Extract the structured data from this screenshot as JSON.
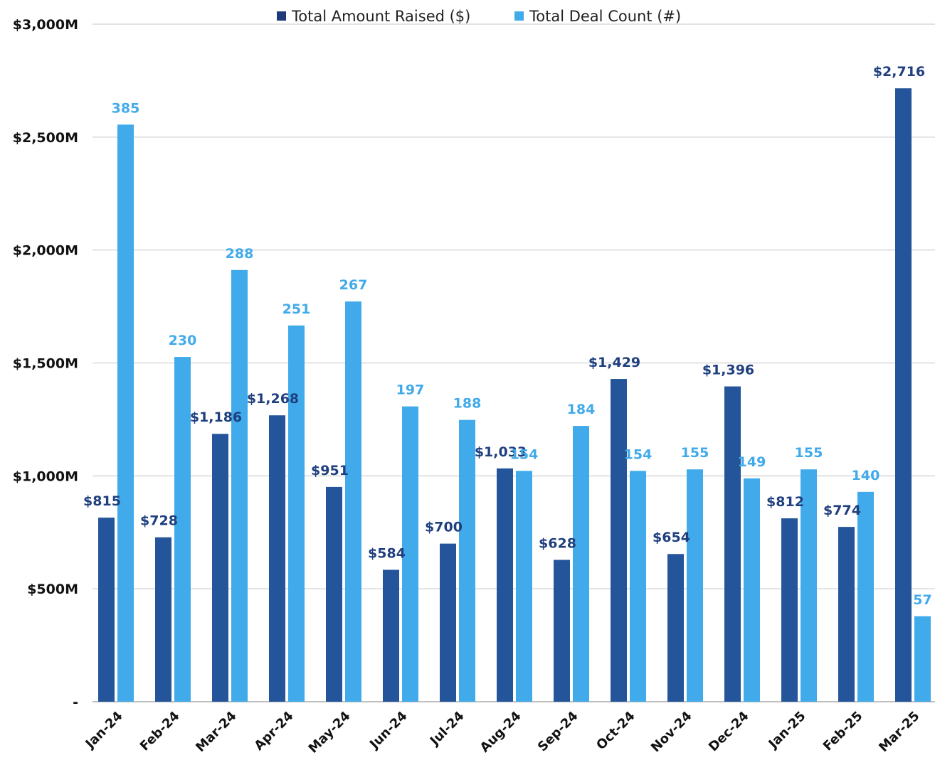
{
  "chart_data": {
    "type": "bar",
    "categories": [
      "Jan-24",
      "Feb-24",
      "Mar-24",
      "Apr-24",
      "May-24",
      "Jun-24",
      "Jul-24",
      "Aug-24",
      "Sep-24",
      "Oct-24",
      "Nov-24",
      "Dec-24",
      "Jan-25",
      "Feb-25",
      "Mar-25"
    ],
    "series": [
      {
        "name": "Total Amount Raised ($)",
        "color": "#24559a",
        "values": [
          815,
          728,
          1186,
          1268,
          951,
          584,
          700,
          1033,
          628,
          1429,
          654,
          1396,
          812,
          774,
          2716
        ],
        "labels": [
          "$815",
          "$728",
          "$1,186",
          "$1,268",
          "$951",
          "$584",
          "$700",
          "$1,033",
          "$628",
          "$1,429",
          "$654",
          "$1,396",
          "$812",
          "$774",
          "$2,716"
        ]
      },
      {
        "name": "Total Deal Count (#)",
        "color": "#41aaea",
        "values": [
          385,
          230,
          288,
          251,
          267,
          197,
          188,
          154,
          184,
          154,
          155,
          149,
          155,
          140,
          57
        ],
        "labels": [
          "385",
          "230",
          "288",
          "251",
          "267",
          "197",
          "188",
          "154",
          "184",
          "154",
          "155",
          "149",
          "155",
          "140",
          "57"
        ]
      }
    ],
    "y_axis": {
      "ticks": [
        0,
        500,
        1000,
        1500,
        2000,
        2500,
        3000
      ],
      "tick_labels": [
        "-",
        "$500M",
        "$1,000M",
        "$1,500M",
        "$2,000M",
        "$2,500M",
        "$3,000M"
      ],
      "ylim": [
        0,
        3000
      ]
    },
    "secondary_scale_note": "deal count bars drawn on hidden secondary axis",
    "deal_count_axis_max": 452,
    "legend": {
      "position": "top-center"
    },
    "grid": true
  }
}
